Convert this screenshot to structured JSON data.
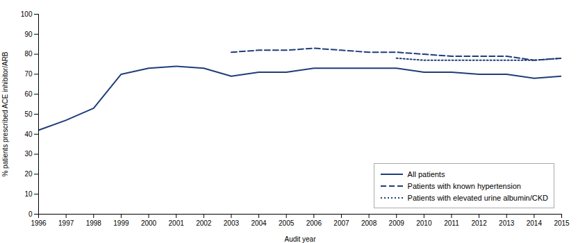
{
  "chart_data": {
    "type": "line",
    "xlabel": "Audit year",
    "ylabel": "% patients prescribed ACE inhibitor/ARB",
    "x": [
      1996,
      1997,
      1998,
      1999,
      2000,
      2001,
      2002,
      2003,
      2004,
      2005,
      2006,
      2007,
      2008,
      2009,
      2010,
      2011,
      2012,
      2013,
      2014,
      2015
    ],
    "series": [
      {
        "name": "All patients",
        "color": "#1f3d7a",
        "line_style": "solid",
        "values": [
          42,
          47,
          53,
          70,
          73,
          74,
          73,
          69,
          71,
          71,
          73,
          73,
          73,
          73,
          71,
          71,
          70,
          70,
          68,
          69
        ]
      },
      {
        "name": "Patients with known hypertension",
        "color": "#1f3d7a",
        "line_style": "dashed",
        "values": [
          null,
          null,
          null,
          null,
          null,
          null,
          null,
          81,
          82,
          82,
          83,
          82,
          81,
          81,
          80,
          79,
          79,
          79,
          77,
          78
        ]
      },
      {
        "name": "Patients with elevated urine albumin/CKD",
        "color": "#1f3d7a",
        "line_style": "dotted",
        "values": [
          null,
          null,
          null,
          null,
          null,
          null,
          null,
          null,
          null,
          null,
          null,
          null,
          null,
          78,
          77,
          77,
          77,
          77,
          77,
          78
        ]
      }
    ],
    "xlim": [
      1996,
      2015
    ],
    "xticks": [
      1996,
      1997,
      1998,
      1999,
      2000,
      2001,
      2002,
      2003,
      2004,
      2005,
      2006,
      2007,
      2008,
      2009,
      2010,
      2011,
      2012,
      2013,
      2014,
      2015
    ],
    "ylim": [
      0,
      100
    ],
    "yticks": [
      0,
      10,
      20,
      30,
      40,
      50,
      60,
      70,
      80,
      90,
      100
    ],
    "grid": false,
    "legend": "lower right"
  }
}
